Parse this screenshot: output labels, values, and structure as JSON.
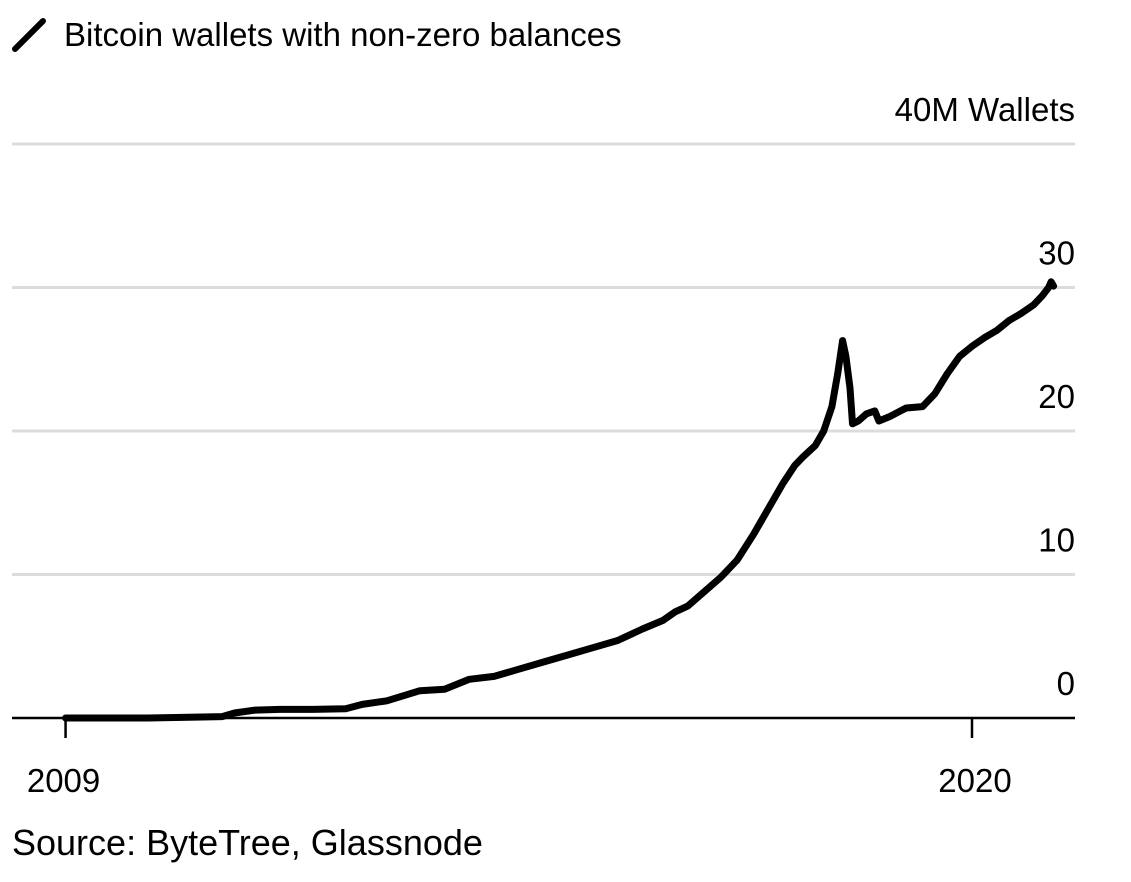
{
  "chart_data": {
    "type": "line",
    "series": [
      {
        "name": "Bitcoin wallets with non-zero balances",
        "color": "#000000",
        "points": [
          [
            2009.0,
            0.0
          ],
          [
            2009.5,
            0.0
          ],
          [
            2010.0,
            0.0
          ],
          [
            2010.5,
            0.05
          ],
          [
            2010.9,
            0.1
          ],
          [
            2011.05,
            0.35
          ],
          [
            2011.3,
            0.55
          ],
          [
            2011.6,
            0.6
          ],
          [
            2012.0,
            0.6
          ],
          [
            2012.4,
            0.65
          ],
          [
            2012.6,
            0.95
          ],
          [
            2012.9,
            1.2
          ],
          [
            2013.3,
            1.9
          ],
          [
            2013.6,
            2.0
          ],
          [
            2013.9,
            2.7
          ],
          [
            2014.2,
            2.9
          ],
          [
            2014.5,
            3.4
          ],
          [
            2014.8,
            3.9
          ],
          [
            2015.1,
            4.4
          ],
          [
            2015.4,
            4.9
          ],
          [
            2015.7,
            5.4
          ],
          [
            2016.0,
            6.2
          ],
          [
            2016.25,
            6.8
          ],
          [
            2016.4,
            7.4
          ],
          [
            2016.55,
            7.8
          ],
          [
            2016.75,
            8.8
          ],
          [
            2016.95,
            9.8
          ],
          [
            2017.15,
            11.0
          ],
          [
            2017.35,
            12.8
          ],
          [
            2017.55,
            14.8
          ],
          [
            2017.7,
            16.3
          ],
          [
            2017.85,
            17.6
          ],
          [
            2017.95,
            18.2
          ],
          [
            2018.1,
            19.0
          ],
          [
            2018.2,
            20.0
          ],
          [
            2018.3,
            21.7
          ],
          [
            2018.37,
            24.0
          ],
          [
            2018.43,
            26.3
          ],
          [
            2018.47,
            25.2
          ],
          [
            2018.52,
            23.0
          ],
          [
            2018.55,
            20.5
          ],
          [
            2018.62,
            20.7
          ],
          [
            2018.72,
            21.2
          ],
          [
            2018.82,
            21.4
          ],
          [
            2018.87,
            20.7
          ],
          [
            2019.0,
            21.0
          ],
          [
            2019.2,
            21.6
          ],
          [
            2019.4,
            21.7
          ],
          [
            2019.55,
            22.6
          ],
          [
            2019.7,
            24.0
          ],
          [
            2019.85,
            25.2
          ],
          [
            2020.0,
            25.9
          ],
          [
            2020.15,
            26.5
          ],
          [
            2020.3,
            27.0
          ],
          [
            2020.45,
            27.7
          ],
          [
            2020.6,
            28.2
          ],
          [
            2020.75,
            28.8
          ],
          [
            2020.85,
            29.4
          ],
          [
            2020.93,
            30.0
          ],
          [
            2020.96,
            30.4
          ],
          [
            2020.99,
            30.1
          ]
        ]
      }
    ],
    "title": "Bitcoin wallets with non-zero balances",
    "unit_label": "40M Wallets",
    "y_ticks": [
      0,
      10,
      20,
      30,
      40
    ],
    "y_tick_labels": [
      "0",
      "10",
      "20",
      "30",
      "40M Wallets"
    ],
    "x_ticks": [
      2009,
      2020
    ],
    "x_tick_labels": [
      "2009",
      "2020"
    ],
    "xlim": [
      2008.35,
      2021.25
    ],
    "ylim": [
      0,
      40
    ],
    "xlabel": "",
    "ylabel": "",
    "grid": true,
    "legend_position": "top-left",
    "source": "Source: ByteTree, Glassnode"
  }
}
